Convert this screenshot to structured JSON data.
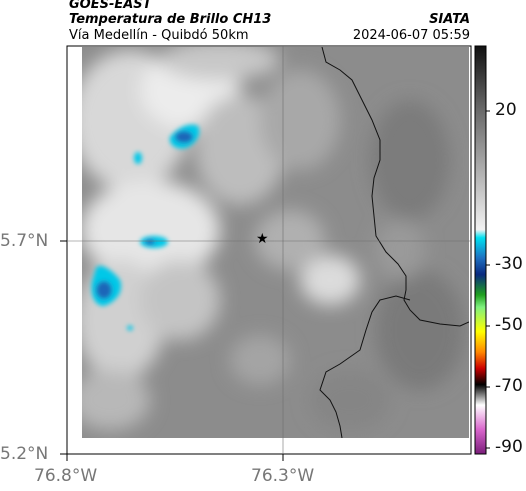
{
  "header": {
    "satellite": "GOES-EAST",
    "product": "Temperatura de Brillo CH13",
    "org": "SIATA",
    "region": "Vía Medellín - Quibdó 50km",
    "datetime": "2024-06-07 05:59"
  },
  "axes": {
    "lat_labels": [
      "5.7°N",
      "5.2°N"
    ],
    "lon_labels": [
      "76.8°W",
      "76.3°W"
    ]
  },
  "marker": {
    "symbol": "★",
    "name": "reference-point"
  },
  "colorbar": {
    "ticks": [
      "20",
      "-30",
      "-50",
      "-70",
      "-90"
    ]
  },
  "colors": {
    "cloud_top": "#00c8e8",
    "cloud_core": "#1a66b8",
    "background_gray": "#8c8c8c"
  }
}
